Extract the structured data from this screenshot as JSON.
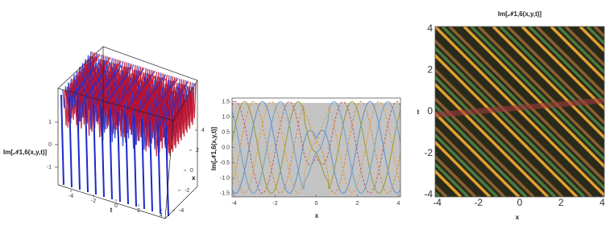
{
  "chart_data": [
    {
      "type": "surface",
      "zlabel": "Im[𝒩1,6(x,y,t)]",
      "xlabel": "x",
      "ylabel": "t",
      "xticks": [
        -4,
        -2,
        0,
        2,
        4
      ],
      "yticks": [
        -4,
        -2,
        0,
        2,
        4
      ],
      "zticks": [
        -1,
        0,
        1
      ]
    },
    {
      "type": "line",
      "xlabel": "x",
      "ylabel": "Im[𝒩1,6(x,y,t)]",
      "xlim": [
        -4.1,
        4.1
      ],
      "ylim": [
        -1.62,
        1.62
      ],
      "xticks": [
        -4,
        -2,
        0,
        2,
        4
      ],
      "yticks": [
        -1.5,
        {
          "value": -1,
          "label": "-1.0"
        },
        -0.5,
        {
          "value": 0,
          "label": "0.0"
        },
        0.5,
        {
          "value": 1,
          "label": "1.0"
        },
        1.5
      ]
    },
    {
      "type": "density",
      "title": "Im[𝒩1,6(x,y,t)]",
      "xlabel": "x",
      "ylabel": "t",
      "xlim": [
        -4.1,
        4.1
      ],
      "ylim": [
        -4.1,
        4.1
      ],
      "xticks": [
        -4,
        -2,
        0,
        2,
        4
      ],
      "yticks": [
        -4,
        -2,
        0,
        2,
        4
      ]
    }
  ]
}
